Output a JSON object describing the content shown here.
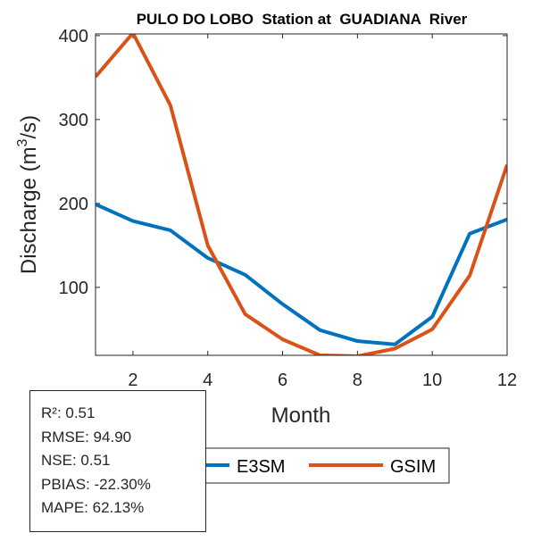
{
  "chart_data": {
    "type": "line",
    "title": "PULO DO LOBO  Station at  GUADIANA  River",
    "xlabel": "Month",
    "ylabel": "Discharge (m",
    "ylabel_sup": "3",
    "ylabel_end": "/s)",
    "x": [
      1,
      2,
      3,
      4,
      5,
      6,
      7,
      8,
      9,
      10,
      11,
      12
    ],
    "xlim": [
      1,
      12
    ],
    "ylim": [
      19,
      402
    ],
    "xticks": [
      2,
      4,
      6,
      8,
      10,
      12
    ],
    "yticks": [
      100,
      200,
      300,
      400
    ],
    "grid": false,
    "legend_placement": "bottom-center",
    "series": [
      {
        "name": "E3SM",
        "color": "#0072BD",
        "values": [
          199,
          179,
          168,
          135,
          115,
          80,
          49,
          36,
          32,
          65,
          164,
          181
        ]
      },
      {
        "name": "GSIM",
        "color": "#D95319",
        "values": [
          351,
          403,
          317,
          150,
          68,
          38,
          19,
          18,
          27,
          50,
          114,
          246
        ]
      }
    ]
  },
  "stats": {
    "r2": "R²: 0.51",
    "rmse": "RMSE: 94.90",
    "nse": "NSE: 0.51",
    "pbias": "PBIAS: -22.30%",
    "mape": "MAPE: 62.13%"
  }
}
